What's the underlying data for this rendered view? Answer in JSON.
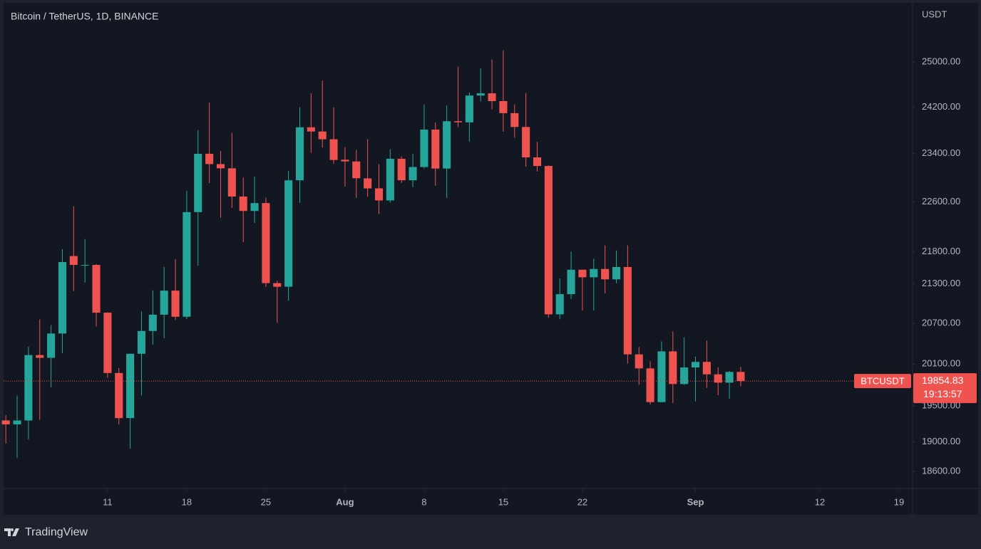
{
  "chart_data": {
    "type": "candlestick",
    "title": "Bitcoin / TetherUS, 1D, BINANCE",
    "y_label": "USDT",
    "symbol": "BTCUSDT",
    "countdown": "19:13:57",
    "up_color": "#26a69a",
    "down_color": "#ef5350",
    "log_scale": true,
    "grid": false,
    "open": [
      19298,
      19243,
      19297,
      20231,
      20191,
      20548,
      21731,
      21592,
      21592,
      20860,
      19970,
      19331,
      20250,
      20586,
      20830,
      21195,
      20799,
      22432,
      23398,
      23224,
      23153,
      22686,
      22451,
      22579,
      21310,
      21255,
      22954,
      23850,
      23777,
      23644,
      23297,
      23268,
      22985,
      22820,
      22622,
      23313,
      22954,
      23175,
      23810,
      23149,
      23954,
      23935,
      24403,
      24442,
      24305,
      24095,
      23855,
      23337,
      23192,
      20835,
      21141,
      21517,
      21400,
      21529,
      21368,
      21560,
      20241,
      20037,
      19555,
      20285,
      19812,
      20050,
      20131,
      19951,
      19832,
      19986
    ],
    "high": [
      19372,
      19647,
      20354,
      20758,
      20675,
      21838,
      22527,
      22000,
      21607,
      20868,
      20042,
      20250,
      20880,
      21200,
      21561,
      21684,
      22777,
      23800,
      24277,
      23442,
      23757,
      22999,
      23014,
      22666,
      21347,
      23112,
      24199,
      24442,
      24668,
      24194,
      23510,
      23466,
      23647,
      23223,
      23472,
      23354,
      23400,
      24245,
      23933,
      24226,
      24918,
      24456,
      24888,
      25047,
      25212,
      24247,
      24447,
      23600,
      23203,
      21382,
      21800,
      21520,
      21689,
      21900,
      21819,
      21900,
      20350,
      20141,
      20433,
      20580,
      20490,
      20208,
      20444,
      20055,
      20000,
      20058
    ],
    "low": [
      18977,
      18781,
      19036,
      19304,
      19762,
      20256,
      21188,
      21320,
      20655,
      19900,
      19240,
      18910,
      19650,
      20383,
      20477,
      20751,
      20762,
      21582,
      22906,
      22341,
      22500,
      21950,
      22257,
      21250,
      20706,
      21043,
      22582,
      23414,
      23502,
      23227,
      22850,
      22664,
      22681,
      22400,
      22587,
      22910,
      22840,
      23150,
      22865,
      22664,
      23853,
      23600,
      24296,
      24160,
      23773,
      23671,
      23180,
      23100,
      20783,
      20761,
      21068,
      20890,
      20890,
      21154,
      21310,
      20107,
      19800,
      19520,
      19550,
      19540,
      19800,
      19565,
      19757,
      19652,
      19600,
      19780
    ],
    "close": [
      19242,
      19297,
      20231,
      20190,
      20548,
      21637,
      21592,
      21592,
      20860,
      19970,
      19330,
      20250,
      20586,
      20830,
      21195,
      20799,
      22432,
      23397,
      23224,
      23153,
      22686,
      22451,
      22579,
      21310,
      21254,
      22953,
      23850,
      23777,
      23644,
      23293,
      23269,
      22988,
      22819,
      22622,
      23313,
      22954,
      23175,
      23810,
      23149,
      23954,
      23935,
      24403,
      24442,
      24305,
      24095,
      23855,
      23337,
      23192,
      20835,
      21141,
      21517,
      21400,
      21529,
      21368,
      21560,
      20241,
      20037,
      19555,
      20285,
      19812,
      20050,
      20131,
      19951,
      19832,
      19986,
      19854.83
    ],
    "xlim": [
      -0.2,
      80.2
    ],
    "xticks": [
      {
        "value": 9,
        "label": "11"
      },
      {
        "value": 16,
        "label": "18"
      },
      {
        "value": 23,
        "label": "25"
      },
      {
        "value": 30,
        "label": "Aug"
      },
      {
        "value": 37,
        "label": "8"
      },
      {
        "value": 44,
        "label": "15"
      },
      {
        "value": 51,
        "label": "22"
      },
      {
        "value": 61,
        "label": "Sep"
      },
      {
        "value": 72,
        "label": "12"
      },
      {
        "value": 79,
        "label": "19"
      }
    ],
    "ylim": [
      18372,
      26093
    ],
    "yticks": [
      {
        "value": 25000,
        "label": "25000.00"
      },
      {
        "value": 24200,
        "label": "24200.00"
      },
      {
        "value": 23400,
        "label": "23400.00"
      },
      {
        "value": 22600,
        "label": "22600.00"
      },
      {
        "value": 21800,
        "label": "21800.00"
      },
      {
        "value": 21300,
        "label": "21300.00"
      },
      {
        "value": 20700,
        "label": "20700.00"
      },
      {
        "value": 20100,
        "label": "20100.00"
      },
      {
        "value": 19500,
        "label": "19500.00"
      },
      {
        "value": 19000,
        "label": "19000.00"
      },
      {
        "value": 18600,
        "label": "18600.00"
      }
    ]
  },
  "footer": {
    "brand": "TradingView"
  }
}
